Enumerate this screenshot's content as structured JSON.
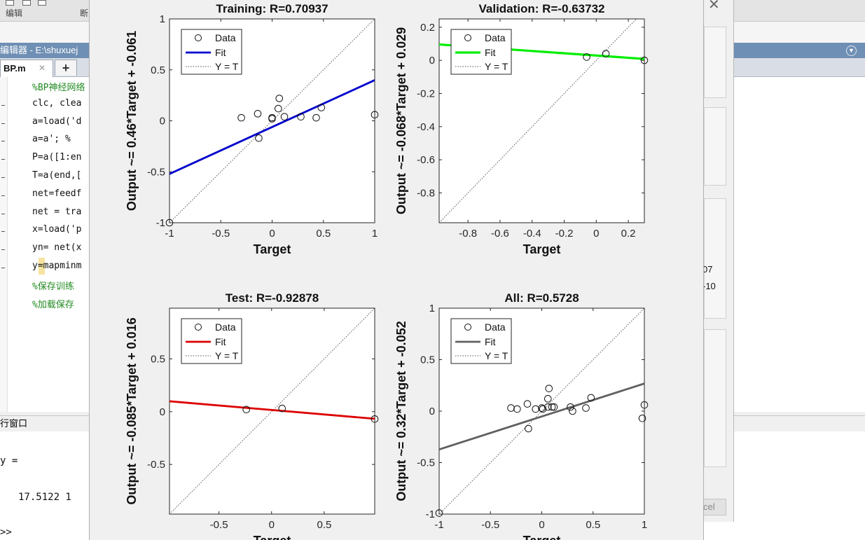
{
  "toolstrip": {
    "tab_label": "编辑",
    "tab_label2": "断"
  },
  "editor": {
    "title": "编辑器 - E:\\shuxuej",
    "tab_label": "BP.m",
    "add_tab_icon": "plus-icon",
    "code_lines": [
      {
        "text": "%BP神经网络",
        "comment": true
      },
      {
        "text": "clc, clea",
        "comment": false
      },
      {
        "text": "a=load('d",
        "comment": false
      },
      {
        "text": "a=a';   %",
        "comment": false
      },
      {
        "text": "P=a([1:en",
        "comment": false
      },
      {
        "text": "T=a(end,[",
        "comment": false
      },
      {
        "text": "net=feedf",
        "comment": false
      },
      {
        "text": "net = tra",
        "comment": false
      },
      {
        "text": "x=load('p",
        "comment": false
      },
      {
        "text": "yn= net(x",
        "comment": false
      },
      {
        "text": "y=mapminm",
        "comment": false
      },
      {
        "text": "%保存训练",
        "comment": true
      },
      {
        "text": "%加载保存",
        "comment": true
      }
    ]
  },
  "command_window": {
    "title": "行窗口",
    "lines": [
      "y =",
      "17.5122    1",
      ">>"
    ]
  },
  "right_panel": {
    "val1": "07",
    "val2": "-10",
    "cancel_label": "cel"
  },
  "colors": {
    "train": "#0000cc",
    "valid": "#00ee00",
    "test": "#dd0000",
    "all": "#606060"
  },
  "plots": [
    {
      "title": "Training: R=0.70937",
      "ylabel": "Output ~= 0.46*Target + -0.061",
      "xlabel": "Target",
      "xlim": [
        -1,
        1
      ],
      "ylim": [
        -1,
        1
      ],
      "xticks": [
        -1,
        -0.5,
        0,
        0.5,
        1
      ],
      "yticks": [
        -1,
        -0.5,
        0,
        0.5,
        1
      ],
      "xtick_labels": [
        "-1",
        "-0.5",
        "0",
        "0.5",
        "1"
      ],
      "ytick_labels": [
        "-1",
        "-0.5",
        "0",
        "0.5",
        "1"
      ],
      "fit": {
        "slope": 0.46,
        "intercept": -0.061,
        "color": "#0000cc",
        "width": 2.8
      },
      "points": [
        [
          -1.0,
          -1.0
        ],
        [
          -0.3,
          0.03
        ],
        [
          -0.14,
          0.07
        ],
        [
          -0.13,
          -0.17
        ],
        [
          0.0,
          0.03
        ],
        [
          0.0,
          0.02
        ],
        [
          0.06,
          0.12
        ],
        [
          0.07,
          0.22
        ],
        [
          0.12,
          0.04
        ],
        [
          0.28,
          0.04
        ],
        [
          0.43,
          0.03
        ],
        [
          0.48,
          0.13
        ],
        [
          1.0,
          0.06
        ]
      ],
      "legend": [
        "Data",
        "Fit",
        "Y = T"
      ]
    },
    {
      "title": "Validation: R=-0.63732",
      "ylabel": "Output ~= -0.068*Target + 0.029",
      "xlabel": "Target",
      "xlim": [
        -0.98,
        0.3
      ],
      "ylim": [
        -0.98,
        0.25
      ],
      "xticks": [
        -0.8,
        -0.6,
        -0.4,
        -0.2,
        0,
        0.2
      ],
      "yticks": [
        -0.8,
        -0.6,
        -0.4,
        -0.2,
        0,
        0.2
      ],
      "xtick_labels": [
        "-0.8",
        "-0.6",
        "-0.4",
        "-0.2",
        "0",
        "0.2"
      ],
      "ytick_labels": [
        "-0.8",
        "-0.6",
        "-0.4",
        "-0.2",
        "0",
        "0.2"
      ],
      "fit": {
        "slope": -0.068,
        "intercept": 0.029,
        "color": "#00ee00",
        "width": 3.2
      },
      "points": [
        [
          -0.06,
          0.02
        ],
        [
          0.06,
          0.04
        ],
        [
          0.3,
          0.0
        ]
      ],
      "legend": [
        "Data",
        "Fit",
        "Y = T"
      ]
    },
    {
      "title": "Test: R=-0.92878",
      "ylabel": "Output ~= -0.085*Target + 0.016",
      "xlabel": "Target",
      "xlim": [
        -0.97,
        0.98
      ],
      "ylim": [
        -0.97,
        0.98
      ],
      "xticks": [
        -0.5,
        0,
        0.5
      ],
      "yticks": [
        -0.5,
        0,
        0.5
      ],
      "xtick_labels": [
        "-0.5",
        "0",
        "0.5"
      ],
      "ytick_labels": [
        "-0.5",
        "0",
        "0.5"
      ],
      "fit": {
        "slope": -0.085,
        "intercept": 0.016,
        "color": "#dd0000",
        "width": 2.8
      },
      "points": [
        [
          -0.24,
          0.02
        ],
        [
          0.1,
          0.03
        ],
        [
          0.98,
          -0.07
        ]
      ],
      "legend": [
        "Data",
        "Fit",
        "Y = T"
      ]
    },
    {
      "title": "All: R=0.5728",
      "ylabel": "Output ~= 0.32*Target + -0.052",
      "xlabel": "Target",
      "xlim": [
        -1,
        1
      ],
      "ylim": [
        -1,
        1
      ],
      "xticks": [
        -1,
        -0.5,
        0,
        0.5,
        1
      ],
      "yticks": [
        -1,
        -0.5,
        0,
        0.5,
        1
      ],
      "xtick_labels": [
        "-1",
        "-0.5",
        "0",
        "0.5",
        "1"
      ],
      "ytick_labels": [
        "-1",
        "-0.5",
        "0",
        "0.5",
        "1"
      ],
      "fit": {
        "slope": 0.32,
        "intercept": -0.052,
        "color": "#606060",
        "width": 2.8
      },
      "points": [
        [
          -1.0,
          -0.99
        ],
        [
          -0.3,
          0.03
        ],
        [
          -0.24,
          0.02
        ],
        [
          -0.14,
          0.07
        ],
        [
          -0.13,
          -0.17
        ],
        [
          -0.06,
          0.02
        ],
        [
          0.0,
          0.03
        ],
        [
          0.01,
          0.02
        ],
        [
          0.06,
          0.04
        ],
        [
          0.06,
          0.12
        ],
        [
          0.07,
          0.22
        ],
        [
          0.1,
          0.04
        ],
        [
          0.12,
          0.04
        ],
        [
          0.28,
          0.04
        ],
        [
          0.3,
          0.0
        ],
        [
          0.43,
          0.03
        ],
        [
          0.48,
          0.13
        ],
        [
          0.98,
          -0.07
        ],
        [
          1.0,
          0.06
        ]
      ],
      "legend": [
        "Data",
        "Fit",
        "Y = T"
      ]
    }
  ]
}
